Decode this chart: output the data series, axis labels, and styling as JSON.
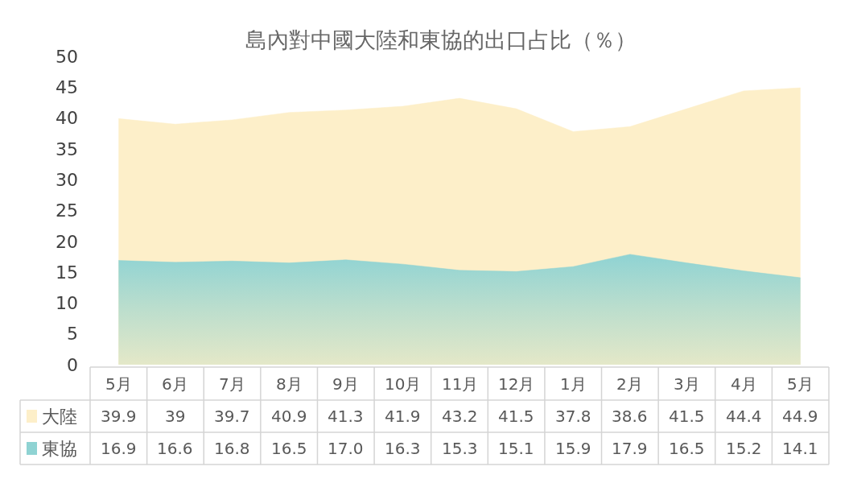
{
  "chart_data": {
    "type": "area",
    "title": "島內對中國大陸和東協的出口占比（％）",
    "categories": [
      "5月",
      "6月",
      "7月",
      "8月",
      "9月",
      "10月",
      "11月",
      "12月",
      "1月",
      "2月",
      "3月",
      "4月",
      "5月"
    ],
    "series": [
      {
        "name": "大陸",
        "color": "#fdefc9",
        "values": [
          39.9,
          39,
          39.7,
          40.9,
          41.3,
          41.9,
          43.2,
          41.5,
          37.8,
          38.6,
          41.5,
          44.4,
          44.9
        ],
        "value_labels": [
          "39.9",
          "39",
          "39.7",
          "40.9",
          "41.3",
          "41.9",
          "43.2",
          "41.5",
          "37.8",
          "38.6",
          "41.5",
          "44.4",
          "44.9"
        ]
      },
      {
        "name": "東協",
        "color": "#8fd3d3",
        "values": [
          16.9,
          16.6,
          16.8,
          16.5,
          17.0,
          16.3,
          15.3,
          15.1,
          15.9,
          17.9,
          16.5,
          15.2,
          14.1
        ],
        "value_labels": [
          "16.9",
          "16.6",
          "16.8",
          "16.5",
          "17.0",
          "16.3",
          "15.3",
          "15.1",
          "15.9",
          "17.9",
          "16.5",
          "15.2",
          "14.1"
        ]
      }
    ],
    "ylim": [
      0,
      50
    ],
    "yticks": [
      0,
      5,
      10,
      15,
      20,
      25,
      30,
      35,
      40,
      45,
      50
    ],
    "legend": "bottom left"
  }
}
